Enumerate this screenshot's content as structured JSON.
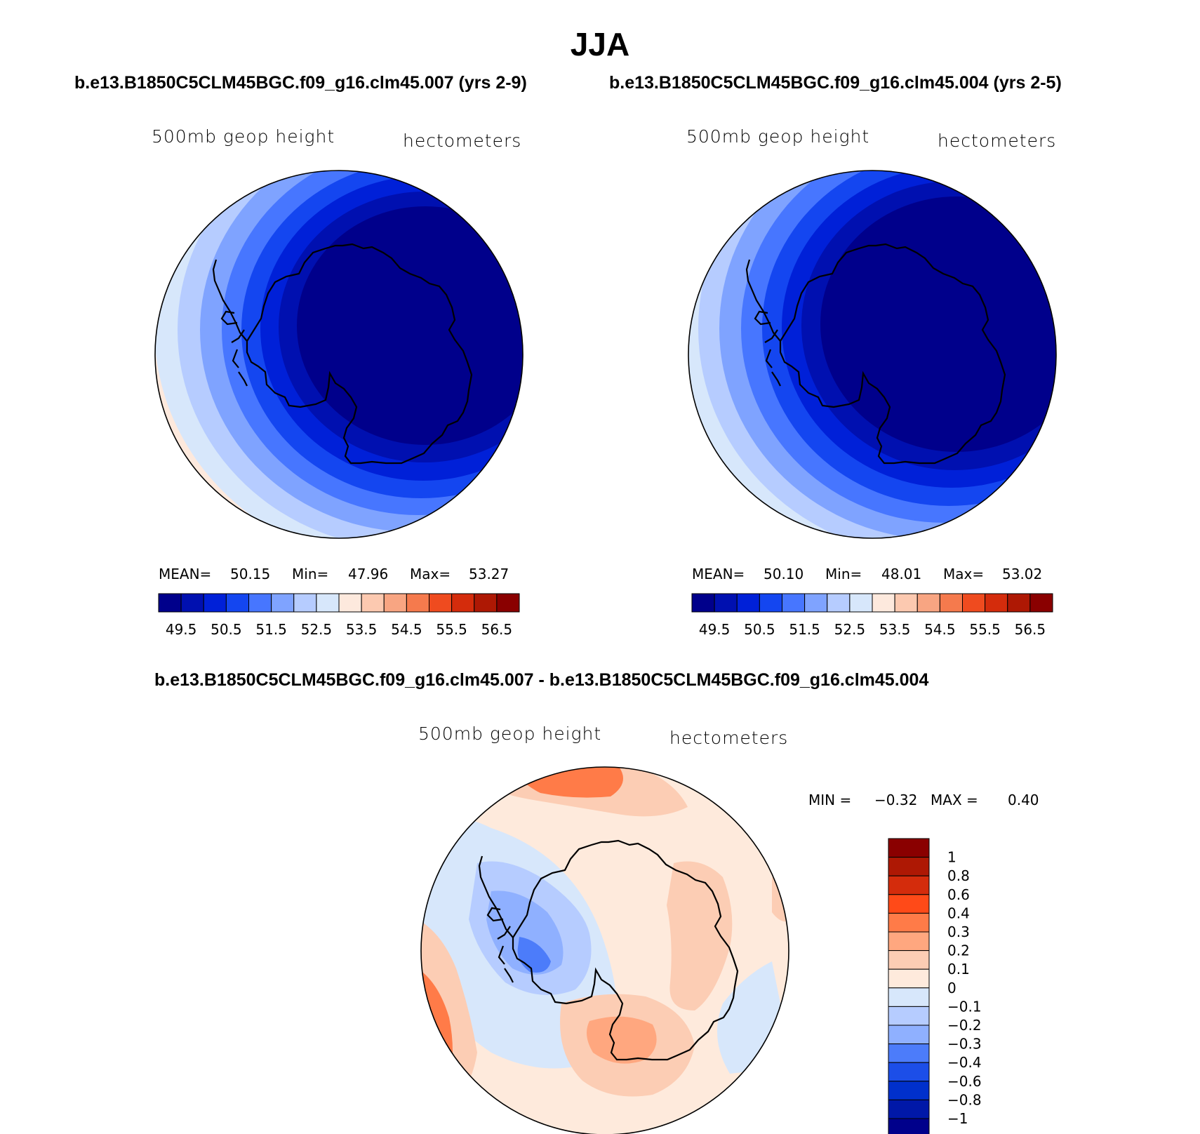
{
  "figure": {
    "title": "JJA",
    "top_left_case": "b.e13.B1850C5CLM45BGC.f09_g16.clm45.007 (yrs 2-9)",
    "top_right_case": "b.e13.B1850C5CLM45BGC.f09_g16.clm45.004 (yrs 2-5)",
    "diff_title": "b.e13.B1850C5CLM45BGC.f09_g16.clm45.007 - b.e13.B1850C5CLM45BGC.f09_g16.clm45.004"
  },
  "panels": [
    {
      "variable": "500mb geop height",
      "units": "hectometers",
      "stats": {
        "mean_label": "MEAN=",
        "mean": "50.15",
        "min_label": "Min=",
        "min": "47.96",
        "max_label": "Max=",
        "max": "53.27"
      }
    },
    {
      "variable": "500mb geop height",
      "units": "hectometers",
      "stats": {
        "mean_label": "MEAN=",
        "mean": "50.10",
        "min_label": "Min=",
        "min": "48.01",
        "max_label": "Max=",
        "max": "53.02"
      }
    }
  ],
  "diff_panel": {
    "variable": "500mb geop height",
    "units": "hectometers",
    "stats": {
      "min_label": "MIN =",
      "min": "−0.32",
      "max_label": "MAX =",
      "max": "0.40"
    }
  },
  "colorbar_main": {
    "colors": [
      "#00008b",
      "#0010b0",
      "#0020d8",
      "#1446f0",
      "#4776ff",
      "#7fa3ff",
      "#b6ccff",
      "#d7e7fb",
      "#fde9dd",
      "#fcc9b0",
      "#f8a582",
      "#f57a4d",
      "#ef4b1f",
      "#d42c0c",
      "#ae1804",
      "#8a0000"
    ],
    "tick_labels": [
      "49.5",
      "50.5",
      "51.5",
      "52.5",
      "53.5",
      "54.5",
      "55.5",
      "56.5"
    ]
  },
  "colorbar_diff": {
    "colors_top_to_bottom": [
      "#8a0000",
      "#ae1804",
      "#d42c0c",
      "#ff4a18",
      "#ff7b48",
      "#ffa77f",
      "#fccdb4",
      "#feeadc",
      "#d7e7fb",
      "#b6ccff",
      "#8fb0ff",
      "#4c7cfa",
      "#1c4ee8",
      "#0030cc",
      "#0018a8",
      "#00008b"
    ],
    "tick_labels": [
      "1",
      "0.8",
      "0.6",
      "0.4",
      "0.3",
      "0.2",
      "0.1",
      "0",
      "−0.1",
      "−0.2",
      "−0.3",
      "−0.4",
      "−0.6",
      "−0.8",
      "−1"
    ]
  }
}
